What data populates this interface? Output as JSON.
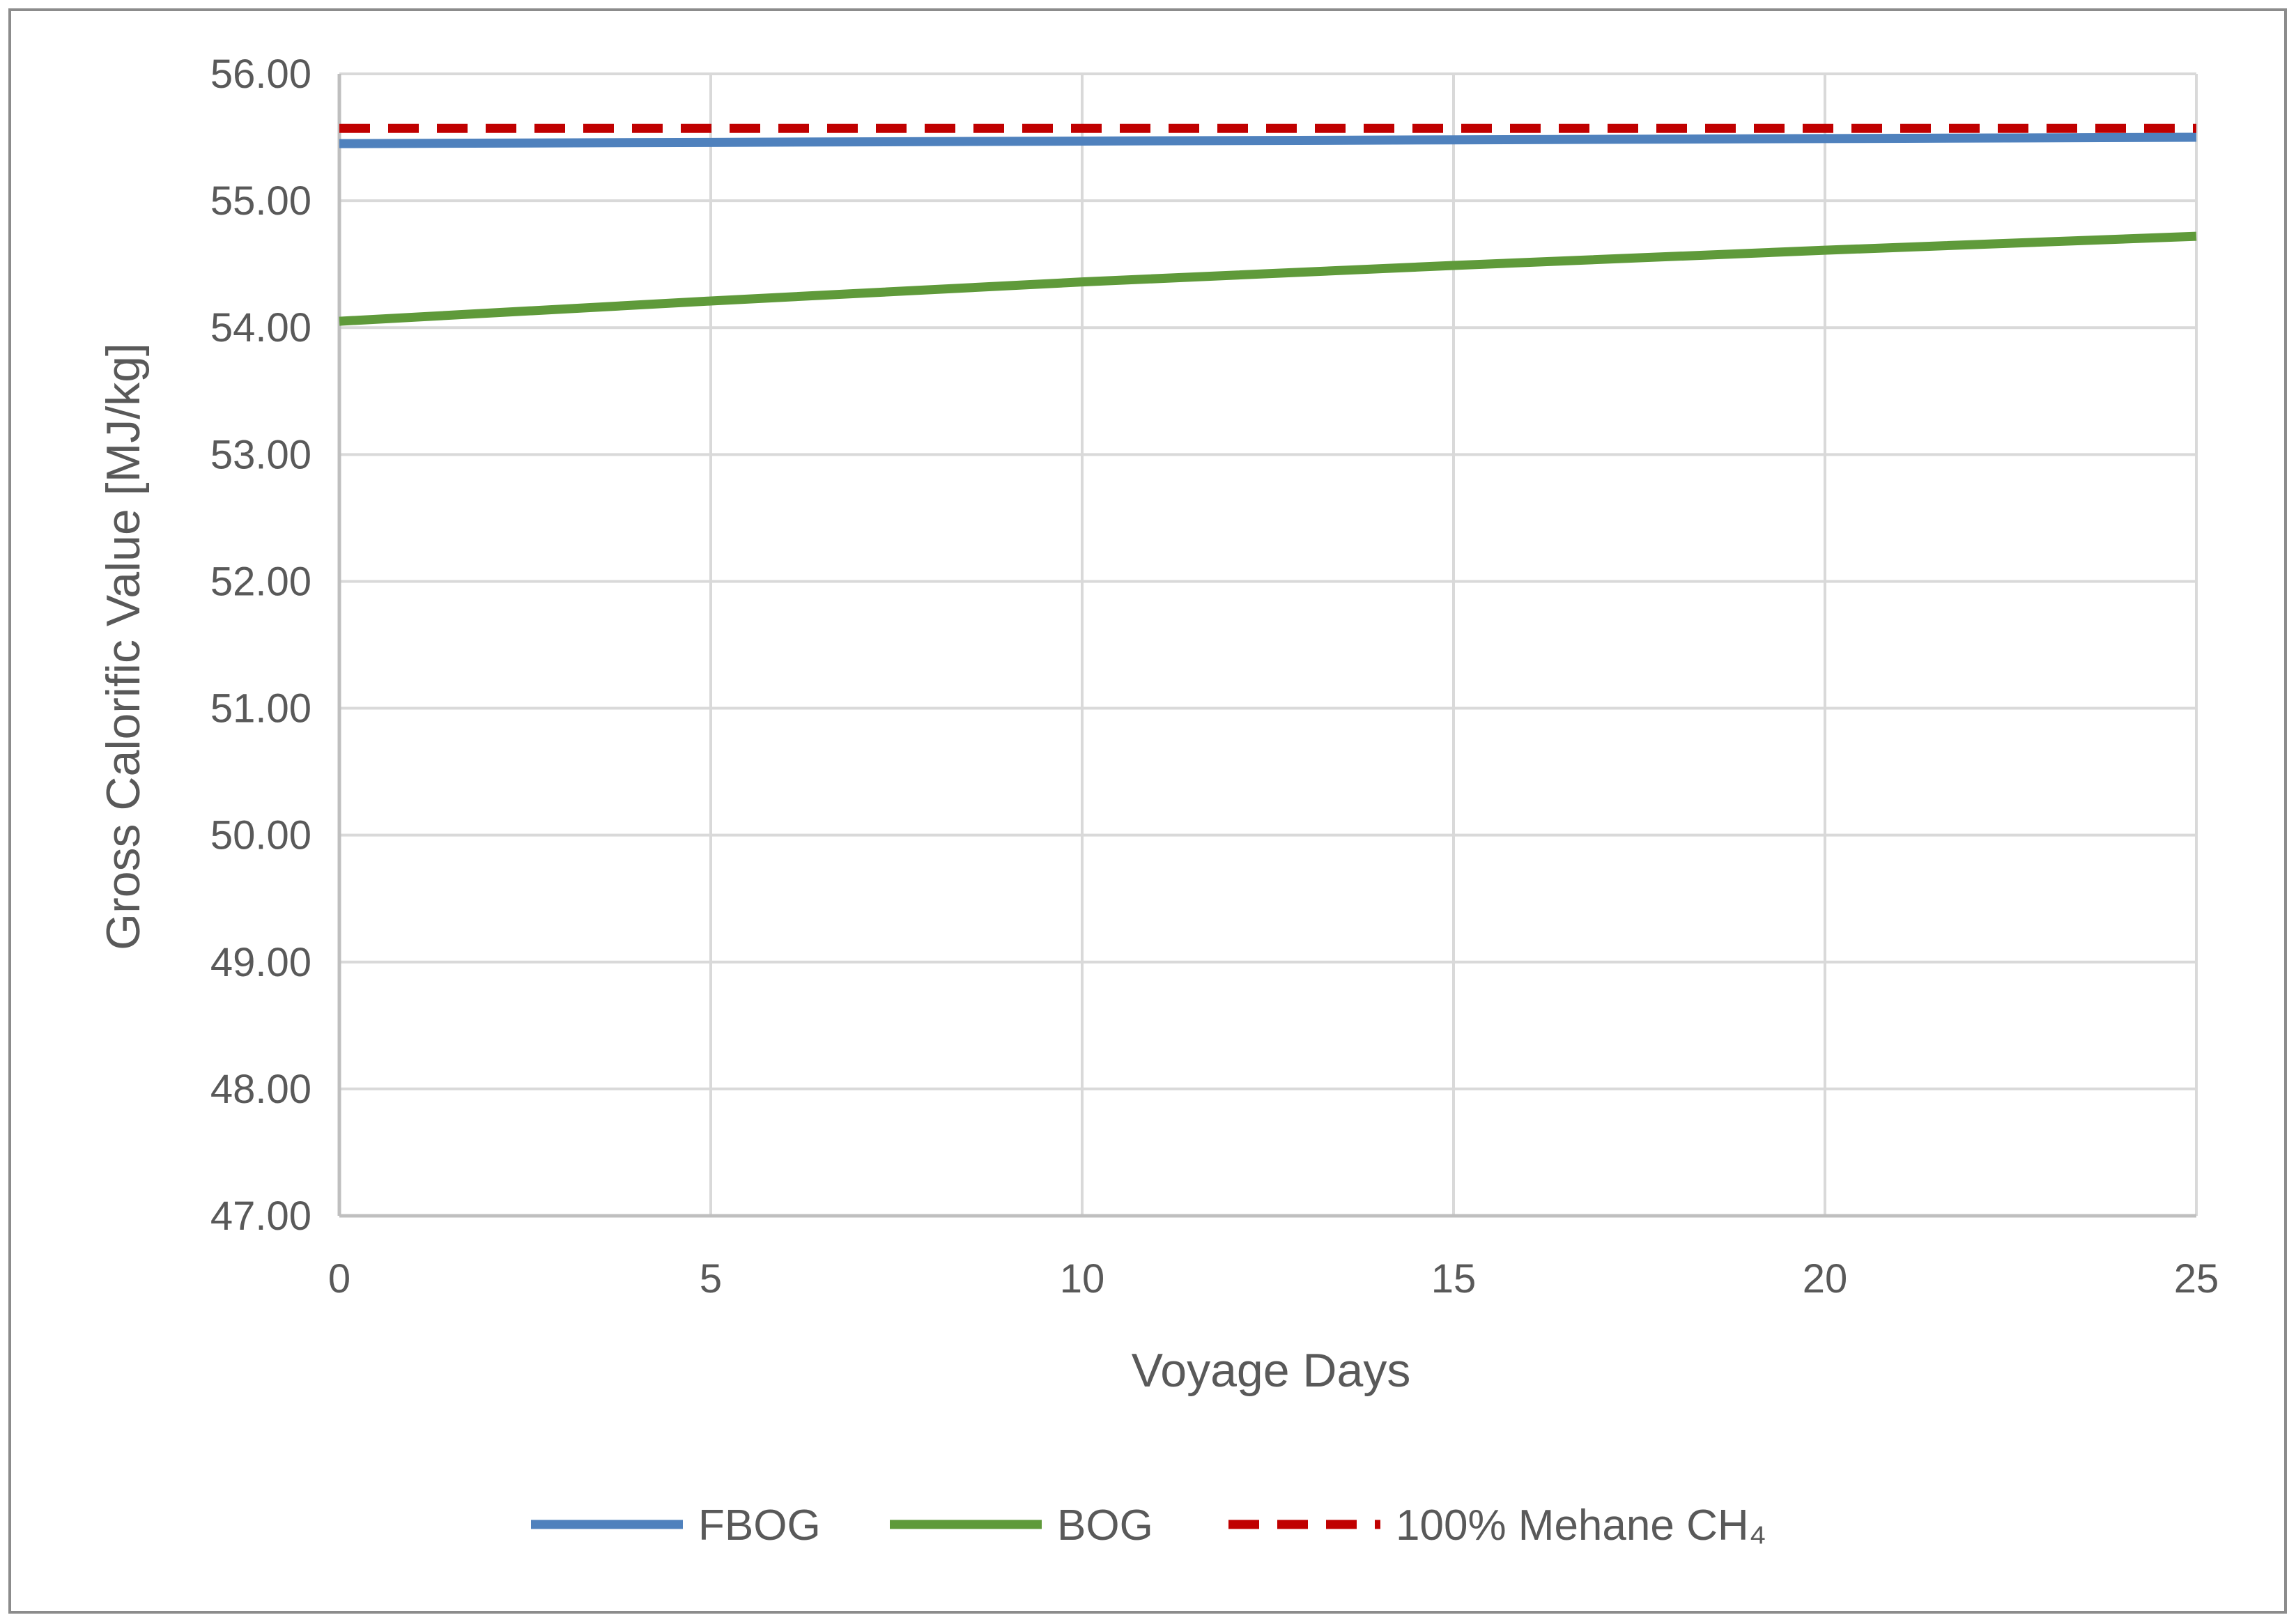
{
  "chart_data": {
    "type": "line",
    "title": "",
    "xlabel": "Voyage Days",
    "ylabel": "Gross Calorific Value [MJ/kg]",
    "xlim": [
      0,
      25
    ],
    "ylim": [
      47,
      56
    ],
    "x_ticks": [
      0,
      5,
      10,
      15,
      20,
      25
    ],
    "x_tick_labels": [
      "0",
      "5",
      "10",
      "15",
      "20",
      "25"
    ],
    "y_ticks": [
      47,
      48,
      49,
      50,
      51,
      52,
      53,
      54,
      55,
      56
    ],
    "y_tick_labels": [
      "47.00",
      "48.00",
      "49.00",
      "50.00",
      "51.00",
      "52.00",
      "53.00",
      "54.00",
      "55.00",
      "56.00"
    ],
    "grid": true,
    "legend_position": "bottom",
    "series": [
      {
        "name": "FBOG",
        "color": "#4f81bd",
        "style": "solid",
        "x": [
          0,
          5,
          10,
          15,
          20,
          25
        ],
        "y": [
          55.45,
          55.46,
          55.47,
          55.48,
          55.49,
          55.5
        ]
      },
      {
        "name": "BOG",
        "color": "#5f9a3a",
        "style": "solid",
        "x": [
          0,
          5,
          10,
          15,
          20,
          25
        ],
        "y": [
          54.05,
          54.21,
          54.36,
          54.49,
          54.61,
          54.72
        ]
      },
      {
        "name": "100% Mehane CH₄",
        "color": "#c00000",
        "style": "dashed",
        "x": [
          0,
          25
        ],
        "y": [
          55.57,
          55.57
        ]
      }
    ]
  },
  "colors": {
    "grid": "#d9d9d9",
    "axis": "#bfbfbf",
    "frame": "#8c8c8c",
    "text": "#595959"
  }
}
